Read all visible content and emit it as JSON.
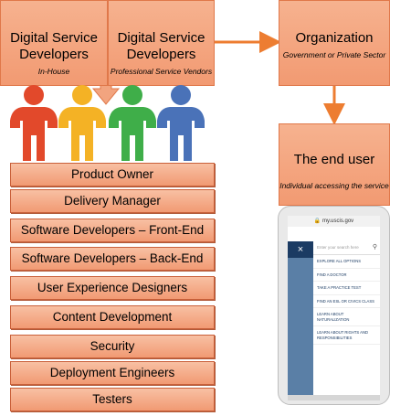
{
  "boxes": {
    "inhouse": {
      "title": "Digital Service Developers",
      "subtitle": "In-House"
    },
    "vendors": {
      "title": "Digital Service Developers",
      "subtitle": "Professional Service Vendors"
    },
    "organization": {
      "title": "Organization",
      "subtitle": "Government or Private Sector"
    },
    "enduser": {
      "title": "The end user",
      "subtitle": "Individual accessing the service"
    }
  },
  "roles": [
    "Product Owner",
    "Delivery Manager",
    "Software Developers – Front-End",
    "Software Developers – Back-End",
    "User Experience Designers",
    "Content Development",
    "Security",
    "Deployment Engineers",
    "Testers"
  ],
  "people_colors": [
    "#e2492b",
    "#f4b225",
    "#3fae49",
    "#4a72b8"
  ],
  "arrow_color": "#ed7d31",
  "phone": {
    "url": "my.uscis.gov",
    "close_glyph": "×",
    "search_placeholder": "Enter your search here",
    "menu_items": [
      "EXPLORE ALL OPTIONS",
      "FIND A DOCTOR",
      "TAKE A PRACTICE TEST",
      "FIND AN ESL OR CIVICS CLASS",
      "LEARN ABOUT NATURALIZATION",
      "LEARN ABOUT RIGHTS AND RESPONSIBILITIES"
    ]
  }
}
